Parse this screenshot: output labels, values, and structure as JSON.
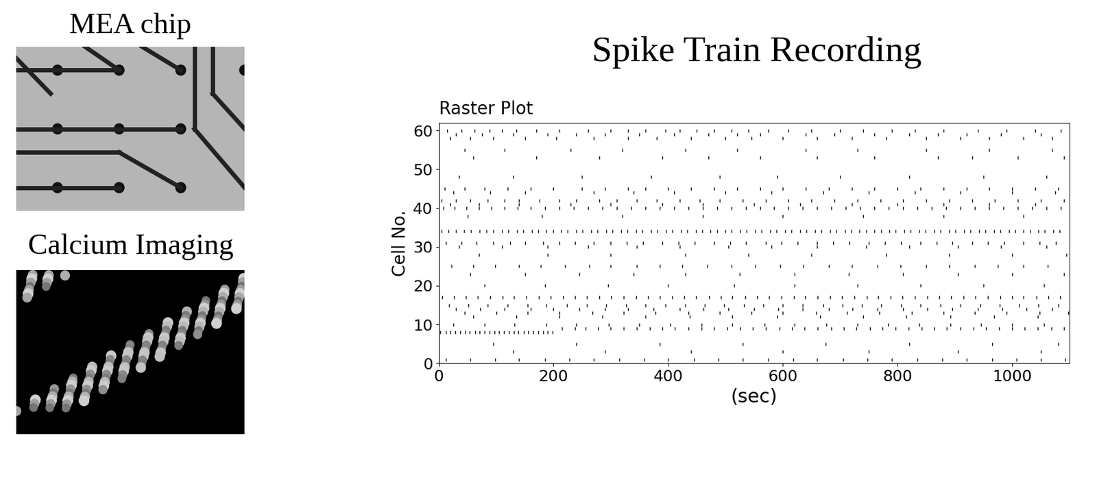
{
  "heading": "Spike Train Recording",
  "images": [
    {
      "label": "MEA chip"
    },
    {
      "label": "Calcium Imaging"
    }
  ],
  "chart_data": {
    "type": "raster",
    "title": "Raster Plot",
    "x_label": "(sec)",
    "y_label": "Cell No.",
    "color": "#000000",
    "xlim": [
      0,
      1100
    ],
    "xticks": [
      0,
      200,
      400,
      600,
      800,
      1000
    ],
    "ylim": [
      0,
      62
    ],
    "yticks": [
      0,
      10,
      20,
      30,
      40,
      50,
      60
    ],
    "spikes": [
      {
        "cell": 60,
        "times": [
          15,
          40,
          62,
          88,
          110,
          135,
          170,
          210,
          260,
          300,
          330,
          360,
          395,
          420,
          450,
          480,
          510,
          540,
          575,
          610,
          650,
          700,
          740,
          790,
          830,
          880,
          940,
          990,
          1040,
          1085
        ]
      },
      {
        "cell": 59,
        "times": [
          30,
          75,
          130,
          190,
          240,
          290,
          350,
          410,
          470,
          520,
          560,
          640,
          690,
          760,
          820,
          870,
          920,
          980,
          1050
        ]
      },
      {
        "cell": 58,
        "times": [
          20,
          55,
          95,
          150,
          205,
          270,
          330,
          380,
          440,
          500,
          545,
          600,
          660,
          720,
          780,
          850,
          910,
          960,
          1020,
          1070
        ]
      },
      {
        "cell": 55,
        "times": [
          45,
          115,
          230,
          320,
          430,
          520,
          640,
          730,
          850,
          960,
          1070
        ]
      },
      {
        "cell": 53,
        "times": [
          60,
          170,
          280,
          390,
          470,
          560,
          660,
          760,
          870,
          930,
          1010,
          1090
        ]
      },
      {
        "cell": 48,
        "times": [
          35,
          130,
          250,
          370,
          490,
          590,
          700,
          820,
          950,
          1060
        ]
      },
      {
        "cell": 45,
        "times": [
          10,
          45,
          80,
          120,
          160,
          200,
          250,
          290,
          330,
          360,
          400,
          440,
          480,
          520,
          560,
          600,
          640,
          680,
          720,
          760,
          800,
          840,
          880,
          920,
          960,
          1000,
          1040,
          1080
        ]
      },
      {
        "cell": 44,
        "times": [
          25,
          90,
          150,
          270,
          340,
          410,
          500,
          580,
          670,
          750,
          830,
          910,
          1000,
          1075
        ]
      },
      {
        "cell": 42,
        "times": [
          5,
          30,
          55,
          85,
          115,
          140,
          175,
          210,
          240,
          280,
          310,
          345,
          380,
          420,
          455,
          490,
          530,
          570,
          610,
          650,
          690,
          730,
          770,
          810,
          850,
          890,
          930,
          970,
          1010,
          1050,
          1090
        ]
      },
      {
        "cell": 41,
        "times": [
          20,
          70,
          140,
          230,
          300,
          390,
          460,
          550,
          630,
          720,
          800,
          880,
          960,
          1040
        ]
      },
      {
        "cell": 40,
        "times": [
          8,
          28,
          48,
          70,
          92,
          115,
          138,
          160,
          185,
          210,
          235,
          260,
          285,
          310,
          335,
          360,
          385,
          410,
          435,
          460,
          485,
          510,
          535,
          560,
          585,
          610,
          635,
          660,
          685,
          710,
          735,
          760,
          785,
          810,
          835,
          860,
          885,
          910,
          935,
          960,
          985,
          1010,
          1035,
          1060,
          1085
        ]
      },
      {
        "cell": 38,
        "times": [
          50,
          180,
          320,
          460,
          600,
          740,
          880,
          1020
        ]
      },
      {
        "cell": 34,
        "times": [
          5,
          17,
          30,
          44,
          56,
          71,
          83,
          95,
          110,
          121,
          136,
          147,
          162,
          173,
          188,
          199,
          214,
          225,
          240,
          251,
          266,
          277,
          292,
          303,
          318,
          329,
          344,
          355,
          370,
          381,
          396,
          407,
          422,
          433,
          448,
          459,
          474,
          485,
          500,
          511,
          526,
          537,
          552,
          563,
          578,
          589,
          604,
          615,
          630,
          641,
          656,
          667,
          682,
          693,
          708,
          719,
          734,
          745,
          760,
          771,
          786,
          797,
          812,
          823,
          838,
          849,
          864,
          875,
          890,
          901,
          916,
          927,
          942,
          953,
          968,
          979,
          994,
          1005,
          1020,
          1031,
          1046,
          1057,
          1072,
          1083
        ]
      },
      {
        "cell": 31,
        "times": [
          12,
          40,
          66,
          95,
          124,
          150,
          182,
          210,
          238,
          270,
          300,
          328,
          356,
          390,
          418,
          446,
          480,
          508,
          536,
          570,
          598,
          626,
          660,
          688,
          716,
          750,
          778,
          806,
          840,
          868,
          896,
          930,
          958,
          986,
          1020,
          1048,
          1076
        ]
      },
      {
        "cell": 30,
        "times": [
          35,
          110,
          190,
          260,
          345,
          420,
          505,
          580,
          660,
          745,
          820,
          905,
          980,
          1060
        ]
      },
      {
        "cell": 28,
        "times": [
          70,
          190,
          300,
          430,
          540,
          650,
          780,
          890,
          1000,
          1095
        ]
      },
      {
        "cell": 25,
        "times": [
          22,
          60,
          98,
          140,
          178,
          220,
          262,
          300,
          345,
          385,
          425,
          468,
          510,
          552,
          595,
          636,
          680,
          720,
          765,
          805,
          850,
          890,
          935,
          975,
          1020,
          1062
        ]
      },
      {
        "cell": 23,
        "times": [
          55,
          150,
          245,
          340,
          430,
          525,
          620,
          715,
          810,
          905,
          1000,
          1090
        ]
      },
      {
        "cell": 20,
        "times": [
          80,
          185,
          295,
          400,
          515,
          620,
          730,
          840,
          950,
          1055
        ]
      },
      {
        "cell": 17,
        "times": [
          6,
          27,
          47,
          68,
          90,
          111,
          131,
          153,
          174,
          195,
          217,
          238,
          258,
          280,
          301,
          322,
          344,
          365,
          385,
          407,
          428,
          449,
          471,
          492,
          512,
          534,
          555,
          576,
          598,
          619,
          639,
          661,
          682,
          703,
          725,
          746,
          766,
          788,
          809,
          830,
          852,
          873,
          893,
          915,
          936,
          957,
          979,
          1000,
          1020,
          1042,
          1063,
          1084
        ]
      },
      {
        "cell": 15,
        "times": [
          18,
          52,
          85,
          120,
          155,
          188,
          223,
          258,
          292,
          327,
          360,
          395,
          430,
          464,
          498,
          532,
          566,
          600,
          635,
          670,
          704,
          738,
          772,
          806,
          840,
          875,
          910,
          944,
          978,
          1012,
          1046,
          1080
        ]
      },
      {
        "cell": 14,
        "times": [
          30,
          72,
          115,
          160,
          200,
          245,
          290,
          330,
          375,
          420,
          462,
          505,
          550,
          592,
          635,
          680,
          722,
          765,
          810,
          852,
          895,
          940,
          982,
          1025,
          1070
        ]
      },
      {
        "cell": 13,
        "times": [
          45,
          100,
          155,
          210,
          268,
          322,
          378,
          435,
          490,
          545,
          600,
          658,
          712,
          768,
          825,
          880,
          935,
          990,
          1048,
          1098
        ]
      },
      {
        "cell": 12,
        "times": [
          60,
          135,
          210,
          285,
          360,
          438,
          512,
          590,
          665,
          740,
          815,
          892,
          968,
          1045
        ]
      },
      {
        "cell": 10,
        "times": [
          25,
          80,
          132,
          188,
          240,
          296,
          350,
          404,
          458,
          512,
          568,
          620,
          676,
          730,
          784,
          838,
          892,
          946,
          1000,
          1055
        ]
      },
      {
        "cell": 9,
        "times": [
          215,
          238,
          256,
          278,
          300,
          322,
          345,
          368,
          390,
          412,
          436,
          458,
          480,
          503,
          526,
          548,
          570,
          594,
          616,
          638,
          661,
          684,
          706,
          728,
          752,
          774,
          796,
          819,
          842,
          864,
          886,
          910,
          932,
          954,
          977,
          1000,
          1022,
          1044,
          1068,
          1090
        ]
      },
      {
        "cell": 8,
        "times": [
          3,
          12,
          20,
          29,
          37,
          46,
          54,
          63,
          71,
          80,
          88,
          97,
          105,
          114,
          122,
          131,
          139,
          148,
          156,
          165,
          173,
          182,
          190,
          198
        ]
      },
      {
        "cell": 5,
        "times": [
          95,
          240,
          385,
          530,
          675,
          820,
          965,
          1080
        ]
      },
      {
        "cell": 3,
        "times": [
          130,
          290,
          440,
          600,
          750,
          905,
          1050
        ]
      },
      {
        "cell": 1,
        "times": [
          12,
          55,
          98,
          140,
          185,
          228,
          270,
          315,
          358,
          400,
          445,
          488,
          530,
          575,
          618,
          660,
          705,
          748,
          790,
          835,
          878,
          920,
          965,
          1008,
          1050,
          1092
        ]
      }
    ]
  }
}
